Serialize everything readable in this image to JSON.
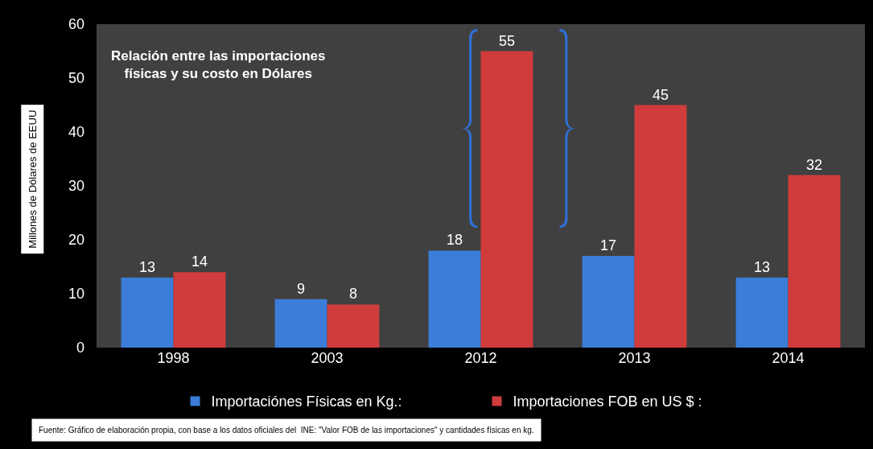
{
  "chart_data": {
    "type": "bar",
    "title": "Relación entre las importaciones\nfísicas y su costo en Dólares",
    "ylabel": "Millones de Dólares de EEUU",
    "categories": [
      "1998",
      "2003",
      "2012",
      "2013",
      "2014"
    ],
    "series": [
      {
        "name": "Importaciónes Físicas en Kg.:",
        "color": "#3b7dd8",
        "values": [
          13,
          9,
          18,
          17,
          13
        ]
      },
      {
        "name": "Importaciones FOB en US $ :",
        "color": "#d03c3c",
        "values": [
          14,
          8,
          55,
          45,
          32
        ]
      }
    ],
    "ylim": [
      0,
      60
    ],
    "yticks": [
      0,
      10,
      20,
      30,
      40,
      50,
      60
    ],
    "legend": "bottom",
    "data_labels": true,
    "annotations": [
      "Fuente: Gráfico de elaboración propia, con base a los datos oficiales del  INE: \"Valor FOB de las importaciones\" y cantidades físicas en kg."
    ]
  }
}
